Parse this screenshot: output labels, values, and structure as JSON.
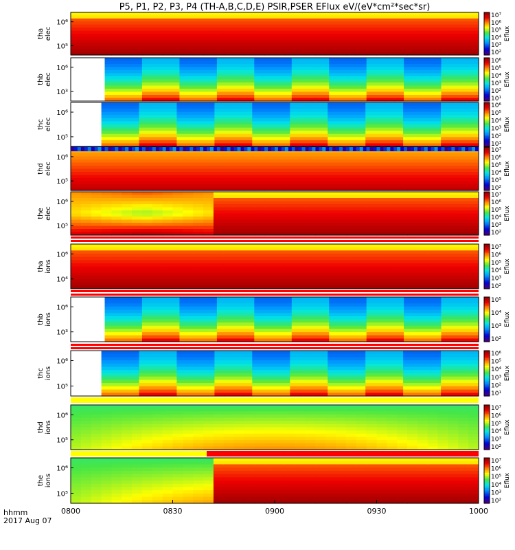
{
  "page": {
    "title": "P5, P1, P2, P3, P4 (TH-A,B,C,D,E) PSIR,PSER EFlux eV/(eV*cm²*sec*sr)"
  },
  "xaxis": {
    "label_line1": "hhmm",
    "label_line2": "2017 Aug 07",
    "ticks": [
      "0800",
      "0830",
      "0900",
      "0930",
      "1000"
    ]
  },
  "chart_data": {
    "type": "heatmap",
    "title": "P5, P1, P2, P3, P4 (TH-A,B,C,D,E) PSIR,PSER EFlux eV/(eV*cm²*sec*sr)",
    "xlabel": "hhmm 2017 Aug 07",
    "x_range": [
      "0800",
      "1000"
    ],
    "yscale": "log",
    "colorscale": "rainbow (purple-blue-cyan-green-yellow-red-darkred)",
    "colorbar_label": "Eflux",
    "panels": [
      {
        "ylabel": [
          "tha",
          "elec"
        ],
        "yticks": [
          "10⁶",
          "10⁵"
        ],
        "cbar_ticks": [
          "10⁷",
          "10⁶",
          "10⁵",
          "10⁴",
          "10³",
          "10²"
        ],
        "data_start": "0800",
        "mid_time": "none",
        "pattern": "dense",
        "early": "warm",
        "late": "dense",
        "top_bar": "none"
      },
      {
        "ylabel": [
          "thb",
          "elec"
        ],
        "yticks": [
          "10⁶",
          "10³"
        ],
        "cbar_ticks": [
          "10⁶",
          "10⁵",
          "10⁴",
          "10³",
          "10²",
          "10¹"
        ],
        "data_start": "0810",
        "mid_time": "none",
        "pattern": "banded",
        "early": "cool",
        "late": "cool",
        "top_bar": "none"
      },
      {
        "ylabel": [
          "thc",
          "elec"
        ],
        "yticks": [
          "10⁶",
          "10⁵"
        ],
        "cbar_ticks": [
          "10⁶",
          "10⁵",
          "10⁴",
          "10³",
          "10²",
          "10¹"
        ],
        "data_start": "0809",
        "mid_time": "none",
        "pattern": "banded",
        "early": "cool",
        "late": "cool",
        "top_bar": "none"
      },
      {
        "ylabel": [
          "thd",
          "elec"
        ],
        "yticks": [
          "10⁶",
          "10⁵"
        ],
        "cbar_ticks": [
          "10⁷",
          "10⁶",
          "10⁵",
          "10⁴",
          "10³",
          "10²"
        ],
        "data_start": "0800",
        "mid_time": "none",
        "pattern": "smooth",
        "early": "warm",
        "late": "warm",
        "top_bar": "noisy"
      },
      {
        "ylabel": [
          "the",
          "elec"
        ],
        "yticks": [
          "10⁶",
          "10⁵"
        ],
        "cbar_ticks": [
          "10⁷",
          "10⁶",
          "10⁵",
          "10⁴",
          "10³",
          "10²"
        ],
        "data_start": "0800",
        "mid_time": "0840",
        "pattern": "smooth",
        "early": "xpattern",
        "late": "dense",
        "top_bar": "none"
      },
      {
        "ylabel": [
          "tha",
          "ions"
        ],
        "yticks": [
          "10⁶",
          "10⁴"
        ],
        "cbar_ticks": [
          "10⁷",
          "10⁶",
          "10⁵",
          "10⁴",
          "10³",
          "10²"
        ],
        "data_start": "0800",
        "mid_time": "none",
        "pattern": "dense",
        "early": "warm",
        "late": "dense",
        "top_bar": "redwhite"
      },
      {
        "ylabel": [
          "thb",
          "ions"
        ],
        "yticks": [
          "10⁶",
          "10³"
        ],
        "cbar_ticks": [
          "10⁵",
          "10⁴",
          "10³",
          "10²"
        ],
        "data_start": "0810",
        "mid_time": "none",
        "pattern": "banded",
        "early": "cool",
        "late": "cool",
        "top_bar": "redwhite"
      },
      {
        "ylabel": [
          "thc",
          "ions"
        ],
        "yticks": [
          "10⁶",
          "10⁵"
        ],
        "cbar_ticks": [
          "10⁶",
          "10⁵",
          "10⁴",
          "10³",
          "10²",
          "10¹"
        ],
        "data_start": "0809",
        "mid_time": "none",
        "pattern": "banded",
        "early": "cool",
        "late": "cool",
        "top_bar": "redwhite"
      },
      {
        "ylabel": [
          "thd",
          "ions"
        ],
        "yticks": [
          "10⁶",
          "10⁵"
        ],
        "cbar_ticks": [
          "10⁷",
          "10⁶",
          "10⁵",
          "10⁴",
          "10³",
          "10²"
        ],
        "data_start": "0800",
        "mid_time": "none",
        "pattern": "smooth",
        "early": "green",
        "late": "green",
        "top_bar": "yellow"
      },
      {
        "ylabel": [
          "the",
          "ions"
        ],
        "yticks": [
          "10⁶",
          "10⁵"
        ],
        "cbar_ticks": [
          "10⁷",
          "10⁶",
          "10⁵",
          "10⁴",
          "10³",
          "10²"
        ],
        "data_start": "0800",
        "mid_time": "0840",
        "pattern": "smooth",
        "early": "green",
        "late": "dense",
        "top_bar": "yellowred"
      }
    ]
  }
}
